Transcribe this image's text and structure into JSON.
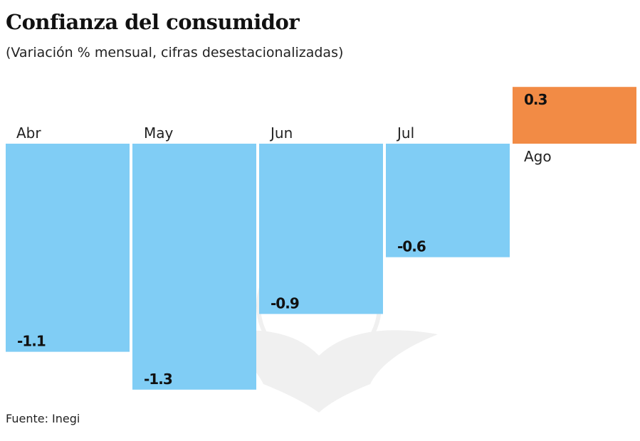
{
  "chart_data": {
    "type": "bar",
    "title": "Confianza del consumidor",
    "subtitle": "(Variación % mensual, cifras desestacionalizadas)",
    "categories": [
      "Abr",
      "May",
      "Jun",
      "Jul",
      "Ago"
    ],
    "values": [
      -1.1,
      -1.3,
      -0.9,
      -0.6,
      0.3
    ],
    "value_labels": [
      "-1.1",
      "-1.3",
      "-0.9",
      "-0.6",
      "0.3"
    ],
    "colors": {
      "negative": "#80CDF5",
      "positive": "#F28B45"
    },
    "ylim": [
      -1.3,
      0.3
    ],
    "grid": false,
    "source": "Fuente: Inegi"
  }
}
